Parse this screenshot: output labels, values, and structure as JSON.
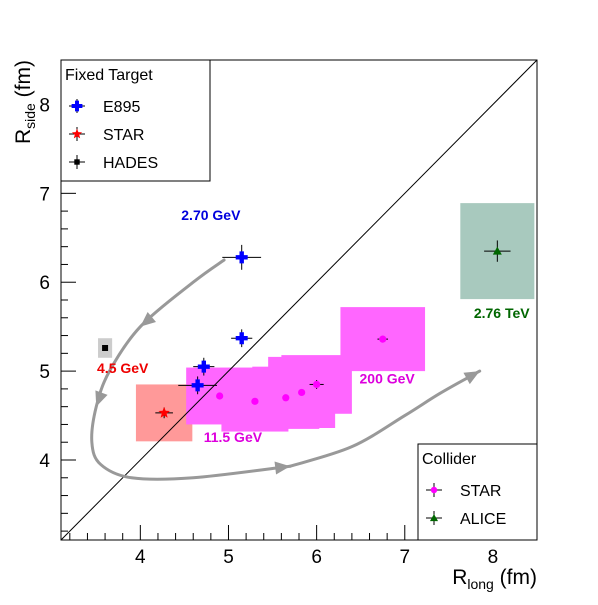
{
  "chart_data": {
    "type": "scatter",
    "title": "",
    "x_axis": {
      "label_main": "R",
      "label_sub": "long",
      "label_unit": " (fm)",
      "range": [
        3.1,
        8.5
      ],
      "ticks": [
        "4",
        "5",
        "6",
        "7",
        "8"
      ]
    },
    "y_axis": {
      "label_main": "R",
      "label_sub": "side",
      "label_unit": " (fm)",
      "range": [
        3.1,
        8.5
      ],
      "ticks": [
        "4",
        "5",
        "6",
        "7",
        "8"
      ]
    },
    "diagonal": true,
    "grid": false,
    "legends": [
      {
        "title": "Fixed Target",
        "placement": "top-left",
        "entries": [
          {
            "label": "E895",
            "marker": "cross",
            "color": "#0000ff"
          },
          {
            "label": "STAR",
            "marker": "star",
            "color": "#ff0000"
          },
          {
            "label": "HADES",
            "marker": "square",
            "color": "#000000"
          }
        ]
      },
      {
        "title": "Collider",
        "placement": "bottom-right",
        "entries": [
          {
            "label": "STAR",
            "marker": "circle",
            "color": "#ff00ff"
          },
          {
            "label": "ALICE",
            "marker": "triangle",
            "color": "#006600"
          }
        ]
      }
    ],
    "series": [
      {
        "name": "E895",
        "color": "#0000ff",
        "marker": "cross",
        "points": [
          {
            "x": 4.65,
            "y": 4.84,
            "ex": 0.22,
            "ey": 0.1
          },
          {
            "x": 4.72,
            "y": 5.05,
            "ex": 0.12,
            "ey": 0.1
          },
          {
            "x": 5.15,
            "y": 5.37,
            "ex": 0.12,
            "ey": 0.1
          },
          {
            "x": 5.15,
            "y": 6.28,
            "ex": 0.22,
            "ey": 0.14
          }
        ]
      },
      {
        "name": "STAR",
        "color": "#ff0000",
        "marker": "star",
        "points": [
          {
            "x": 4.27,
            "y": 4.53,
            "ex": 0.1,
            "ey": 0.06,
            "sx": 0.32,
            "sy": 0.32
          }
        ]
      },
      {
        "name": "HADES",
        "color": "#000000",
        "marker": "square",
        "points": [
          {
            "x": 3.6,
            "y": 5.26,
            "sx": 0.08,
            "sy": 0.11
          }
        ]
      },
      {
        "name": "STAR",
        "color": "#ff00ff",
        "marker": "circle",
        "points": [
          {
            "x": 4.9,
            "y": 4.72,
            "sx": 0.38,
            "sy": 0.32
          },
          {
            "x": 5.3,
            "y": 4.66,
            "sx": 0.38,
            "sy": 0.34
          },
          {
            "x": 5.65,
            "y": 4.7,
            "sx": 0.38,
            "sy": 0.35
          },
          {
            "x": 5.83,
            "y": 4.76,
            "sx": 0.38,
            "sy": 0.4
          },
          {
            "x": 6.0,
            "y": 4.85,
            "ex": 0.08,
            "ey": 0.05,
            "sx": 0.4,
            "sy": 0.33
          },
          {
            "x": 6.75,
            "y": 5.36,
            "ex": 0.06,
            "ey": 0.03,
            "sx": 0.48,
            "sy": 0.36
          }
        ]
      },
      {
        "name": "ALICE",
        "color": "#006600",
        "marker": "triangle",
        "points": [
          {
            "x": 8.05,
            "y": 6.35,
            "ex": 0.15,
            "ey": 0.12,
            "sx": 0.42,
            "sy": 0.54
          }
        ]
      }
    ],
    "annotations": [
      {
        "text": "2.70 GeV",
        "color": "#0000dd",
        "x": 4.8,
        "y": 6.7
      },
      {
        "text": "4.5 GeV",
        "color": "#ee0000",
        "x": 3.8,
        "y": 4.98
      },
      {
        "text": "11.5 GeV",
        "color": "#dd00dd",
        "x": 5.05,
        "y": 4.2
      },
      {
        "text": "200 GeV",
        "color": "#dd00dd",
        "x": 6.8,
        "y": 4.86
      },
      {
        "text": "2.76 TeV",
        "color": "#006600",
        "x": 8.1,
        "y": 5.6
      }
    ],
    "arrows": [
      {
        "color": "#999999",
        "points": [
          [
            4.95,
            6.25
          ],
          [
            4.6,
            6.0
          ],
          [
            4.0,
            5.5
          ],
          [
            3.65,
            5.0
          ],
          [
            3.5,
            4.6
          ],
          [
            3.45,
            4.2
          ],
          [
            3.55,
            3.95
          ],
          [
            3.9,
            3.8
          ],
          [
            4.6,
            3.8
          ],
          [
            5.7,
            3.93
          ]
        ],
        "arrow_marks_at": [
          2,
          4,
          9
        ]
      },
      {
        "color": "#999999",
        "points": [
          [
            5.7,
            3.93
          ],
          [
            6.4,
            4.15
          ],
          [
            7.0,
            4.5
          ],
          [
            7.4,
            4.75
          ],
          [
            7.85,
            5.0
          ]
        ],
        "arrow_marks_at": [
          4
        ]
      }
    ]
  }
}
